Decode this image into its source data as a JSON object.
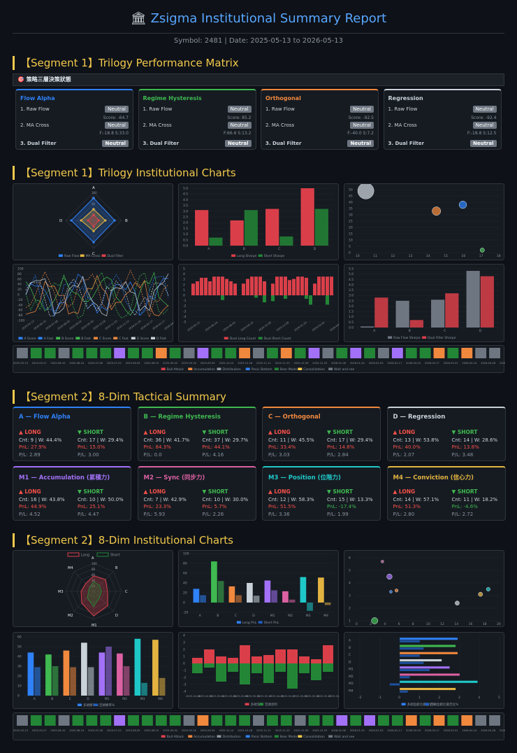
{
  "header": {
    "icon": "bank-icon",
    "title": "Zsigma Institutional Summary Report",
    "subtitle": "Symbol: 2481 | Date: 2025-05-13 to 2026-05-13"
  },
  "sections": {
    "s1": "【Segment 1】Trilogy Performance Matrix",
    "s2": "【Segment 1】Trilogy Institutional Charts",
    "s3": "【Segment 2】8-Dim Tactical Summary",
    "s4": "【Segment 2】8-Dim Institutional Charts"
  },
  "strip_label": "🎯 策略三層決策狀態",
  "trilogy_cards": [
    {
      "title": "Flow Alpha",
      "color": "#2f81f7",
      "r1": "1. Raw Flow",
      "r2": "2. MA Cross",
      "r3": "3. Dual Filter",
      "b1": "Neutral",
      "b2": "Neutral",
      "b3": "Neutral",
      "score": "Score: -64.7",
      "f": "F:-18.8 S:33.0"
    },
    {
      "title": "Regime Hysteresis",
      "color": "#3fb950",
      "r1": "1. Raw Flow",
      "r2": "2. MA Cross",
      "r3": "3. Dual Filter",
      "b1": "Neutral",
      "b2": "Neutral",
      "b3": "Neutral",
      "score": "Score: 85.2",
      "f": "F:66.6 S:13.2"
    },
    {
      "title": "Orthogonal",
      "color": "#f0883e",
      "r1": "1. Raw Flow",
      "r2": "2. MA Cross",
      "r3": "3. Dual Filter",
      "b1": "Neutral",
      "b2": "Neutral",
      "b3": "Neutral",
      "score": "Score: -92.5",
      "f": "F:-40.0 S:7.2"
    },
    {
      "title": "Regression",
      "color": "#c9d1d9",
      "r1": "1. Raw Flow",
      "r2": "2. MA Cross",
      "r3": "3. Dual Filter",
      "b1": "Neutral",
      "b2": "Neutral",
      "b3": "Neutral",
      "score": "Score: -92.4",
      "f": "F:-18.8 S:12.5"
    }
  ],
  "tactical_cards": [
    {
      "title": "A — Flow Alpha",
      "color": "#2f81f7",
      "lh": "▲ LONG",
      "sh": "▼ SHORT",
      "l1": "Cnt: 9 | W: 44.4%",
      "l2": "PnL: 27.9%",
      "l3": "P/L: 2.89",
      "s1": "Cnt: 17 | W: 29.4%",
      "s2": "PnL: 15.0%",
      "s3": "P/L: 3.00",
      "lc": "#f85149",
      "sc": "#f85149"
    },
    {
      "title": "B — Regime Hysteresis",
      "color": "#3fb950",
      "lh": "▲ LONG",
      "sh": "▼ SHORT",
      "l1": "Cnt: 36 | W: 41.7%",
      "l2": "PnL: 84.3%",
      "l3": "P/L: 0.0",
      "s1": "Cnt: 37 | W: 29.7%",
      "s2": "PnL: 44.1%",
      "s3": "P/L: 4.16",
      "lc": "#f85149",
      "sc": "#f85149"
    },
    {
      "title": "C — Orthogonal",
      "color": "#f0883e",
      "lh": "▲ LONG",
      "sh": "▼ SHORT",
      "l1": "Cnt: 11 | W: 45.5%",
      "l2": "PnL: 33.4%",
      "l3": "P/L: 3.03",
      "s1": "Cnt: 17 | W: 29.4%",
      "s2": "PnL: 14.8%",
      "s3": "P/L: 2.84",
      "lc": "#f85149",
      "sc": "#f85149"
    },
    {
      "title": "D — Regression",
      "color": "#c9d1d9",
      "lh": "▲ LONG",
      "sh": "▼ SHORT",
      "l1": "Cnt: 13 | W: 53.8%",
      "l2": "PnL: 40.0%",
      "l3": "P/L: 2.07",
      "s1": "Cnt: 14 | W: 28.6%",
      "s2": "PnL: 13.8%",
      "s3": "P/L: 3.48",
      "lc": "#f85149",
      "sc": "#f85149"
    },
    {
      "title": "M1 — Accumulation (累積力)",
      "color": "#a371f7",
      "lh": "▲ LONG",
      "sh": "▼ SHORT",
      "l1": "Cnt: 16 | W: 43.8%",
      "l2": "PnL: 44.9%",
      "l3": "P/L: 4.52",
      "s1": "Cnt: 10 | W: 50.0%",
      "s2": "PnL: 25.1%",
      "s3": "P/L: 4.47",
      "lc": "#f85149",
      "sc": "#f85149"
    },
    {
      "title": "M2 — Sync (同步力)",
      "color": "#db61a2",
      "lh": "▲ LONG",
      "sh": "▼ SHORT",
      "l1": "Cnt: 7 | W: 42.9%",
      "l2": "PnL: 23.3%",
      "l3": "P/L: 5.93",
      "s1": "Cnt: 10 | W: 30.0%",
      "s2": "PnL: 5.7%",
      "s3": "P/L: 2.26",
      "lc": "#f85149",
      "sc": "#f85149"
    },
    {
      "title": "M3 — Position (位階力)",
      "color": "#1fc8c8",
      "lh": "▲ LONG",
      "sh": "▼ SHORT",
      "l1": "Cnt: 12 | W: 58.3%",
      "l2": "PnL: 51.5%",
      "l3": "P/L: 3.36",
      "s1": "Cnt: 15 | W: 13.3%",
      "s2": "PnL: -17.4%",
      "s3": "P/L: 1.99",
      "lc": "#f85149",
      "sc": "#3fb950"
    },
    {
      "title": "M4 — Conviction (信心力)",
      "color": "#e3b341",
      "lh": "▲ LONG",
      "sh": "▼ SHORT",
      "l1": "Cnt: 14 | W: 57.1%",
      "l2": "PnL: 51.3%",
      "l3": "P/L: 2.80",
      "s1": "Cnt: 11 | W: 18.2%",
      "s2": "PnL: -4.6%",
      "s3": "P/L: 2.72",
      "lc": "#f85149",
      "sc": "#3fb950"
    }
  ],
  "chart_data": [
    {
      "type": "radar",
      "axes": [
        "A",
        "B",
        "C",
        "D"
      ],
      "ticks": [
        "100",
        "80",
        "60",
        "40",
        "20"
      ],
      "series": [
        {
          "name": "Raw Flow",
          "values": [
            80,
            75,
            78,
            80
          ]
        },
        {
          "name": "MA Cross",
          "values": [
            40,
            42,
            38,
            45
          ]
        },
        {
          "name": "Dual Filter",
          "values": [
            20,
            18,
            22,
            20
          ]
        }
      ]
    },
    {
      "type": "bar",
      "categories": [
        "A",
        "B",
        "C",
        "D"
      ],
      "ticks": [
        "5.0",
        "4.5",
        "4.0",
        "3.5",
        "3.0",
        "2.5",
        "2.0",
        "1.5",
        "1.0",
        "0.5",
        "0.0"
      ],
      "series": [
        {
          "name": "Long Sharpe",
          "values": [
            3.1,
            2.2,
            3.2,
            5.0
          ]
        },
        {
          "name": "Short Sharpe",
          "values": [
            0.7,
            3.1,
            0.8,
            3.2
          ]
        }
      ]
    },
    {
      "type": "scatter",
      "xticks": [
        "10",
        "11",
        "12",
        "13",
        "14",
        "15",
        "16",
        "17",
        "18"
      ],
      "yticks": [
        "50",
        "45",
        "40",
        "35",
        "30",
        "25",
        "20",
        "15",
        "10",
        "5",
        "0"
      ],
      "points": [
        {
          "x": 10.5,
          "y": 49,
          "r": 30,
          "c": "#c9d1d9"
        },
        {
          "x": 14.5,
          "y": 33,
          "r": 16,
          "c": "#f0883e"
        },
        {
          "x": 16,
          "y": 38,
          "r": 14,
          "c": "#2f81f7"
        },
        {
          "x": 17.1,
          "y": 2,
          "r": 8,
          "c": "#3fb950"
        }
      ]
    },
    {
      "type": "line",
      "legend": [
        "A Score",
        "A Fast",
        "B Score",
        "B Fast",
        "C Score",
        "C Fast",
        "D Score",
        "D Fast"
      ],
      "yticks": [
        "100",
        "80",
        "60",
        "40",
        "20",
        "0",
        "-20",
        "-40",
        "-60",
        "-80",
        "-100"
      ],
      "xticks": [
        "2025-05-13",
        "2025-06-10",
        "2025-07-08",
        "2025-08-05",
        "2025-09-02",
        "2025-09-30",
        "2025-10-28",
        "2025-11-25",
        "2025-12-23",
        "2026-01-20",
        "2026-02-17",
        "2026-03-17",
        "2026-04-14"
      ]
    },
    {
      "type": "bar",
      "legend": [
        "Dual Long Count",
        "Dual Short Count"
      ],
      "yticks": [
        "5",
        "4",
        "3",
        "2",
        "1",
        "0",
        "-1",
        "-2",
        "-3",
        "-4",
        "-5"
      ],
      "xticks": [
        "2025-05-13",
        "2025-06-24",
        "2025-08-05",
        "2025-09-16",
        "2025-10-28",
        "2025-12-09",
        "2026-01-20",
        "2026-03-03",
        "2026-04-14"
      ],
      "long": [
        1,
        1.2,
        1.5,
        1.5,
        1.2,
        1.6,
        1.6,
        1.6,
        1.4,
        1.2,
        1,
        0,
        1,
        1.4,
        1.6,
        1.6,
        1.6,
        1.2,
        0,
        1,
        1.6,
        1.6,
        1.6,
        1.3,
        1.4,
        1.6,
        1.6,
        1.5,
        0,
        1,
        1.6,
        1.6,
        1.6,
        1.6
      ],
      "short": [
        0,
        0,
        0,
        0,
        0,
        0,
        0,
        -0.4,
        0,
        0,
        0,
        0,
        0,
        0,
        0,
        -0.2,
        0,
        -0.6,
        0,
        -0.5,
        0,
        0,
        -0.3,
        0,
        0,
        0,
        0,
        -0.3,
        -0.8,
        0,
        0,
        0,
        -0.8,
        0
      ]
    },
    {
      "type": "bar",
      "categories": [
        "A",
        "B",
        "C",
        "D"
      ],
      "yticks": [
        "5.5",
        "5.0",
        "4.5",
        "4.0",
        "3.5",
        "3.0",
        "2.5",
        "2.0",
        "1.5",
        "1.0",
        "0.5",
        "0.0"
      ],
      "series": [
        {
          "name": "Raw Flow Sharpe",
          "values": [
            0.1,
            2.5,
            2.6,
            5.3
          ]
        },
        {
          "name": "Dual Filter Sharpe",
          "values": [
            2.8,
            0.7,
            3.2,
            4.8
          ]
        }
      ]
    },
    {
      "type": "heatstrip",
      "legend": [
        "Bull Attack",
        "Accumulation",
        "Distribution",
        "Panic Bottom",
        "Bear Mode",
        "Consolidation",
        "Wait and see"
      ],
      "cells": [
        "#6e7681",
        "#238636",
        "#238636",
        "#6e7681",
        "#238636",
        "#238636",
        "#238636",
        "#a371f7",
        "#238636",
        "#238636",
        "#f0883e",
        "#238636",
        "#6e7681",
        "#a371f7",
        "#238636",
        "#238636",
        "#f0883e",
        "#6e7681",
        "#238636",
        "#f0883e",
        "#238636",
        "#a371f7",
        "#6e7681",
        "#238636",
        "#a371f7",
        "#238636",
        "#6e7681",
        "#a371f7",
        "#238636",
        "#238636",
        "#f0883e",
        "#238636",
        "#f0883e",
        "#6e7681",
        "#6e7681"
      ],
      "xlabels": [
        "2025-05-13",
        "2025-05-27",
        "2025-06-10",
        "2025-06-24",
        "2025-07-08",
        "2025-07-22",
        "2025-08-05",
        "2025-08-19",
        "2025-09-02",
        "2025-09-16",
        "2025-09-30",
        "2025-10-14",
        "2025-10-28",
        "2025-11-11",
        "2025-11-25",
        "2025-12-09",
        "2025-12-23",
        "2026-01-06",
        "2026-01-20",
        "2026-02-03",
        "2026-02-17",
        "2026-03-03",
        "2026-03-17",
        "2026-03-31",
        "2026-04-14",
        "2026-04-28",
        "2026-05-12"
      ]
    },
    {
      "type": "radar",
      "axes": [
        "A",
        "B",
        "C",
        "D",
        "M1",
        "M2",
        "M3",
        "M4"
      ],
      "ticks": [
        "100",
        "80",
        "60",
        "40",
        "20"
      ],
      "legend": [
        "Long",
        "Short"
      ],
      "series": [
        {
          "name": "Long",
          "values": [
            55,
            60,
            50,
            72,
            88,
            60,
            45,
            40
          ]
        },
        {
          "name": "Short",
          "values": [
            35,
            30,
            28,
            30,
            55,
            32,
            18,
            20
          ]
        }
      ]
    },
    {
      "type": "bar",
      "categories": [
        "A",
        "B",
        "C",
        "D",
        "M1",
        "M2",
        "M3",
        "M4"
      ],
      "yticks": [
        "100",
        "80",
        "60",
        "40",
        "20",
        "0",
        "-20"
      ],
      "series": [
        {
          "name": "Long PnL",
          "values": [
            28,
            84,
            33,
            40,
            45,
            23,
            52,
            51
          ]
        },
        {
          "name": "Short PnL",
          "values": [
            15,
            44,
            15,
            14,
            25,
            6,
            -17,
            -5
          ]
        }
      ]
    },
    {
      "type": "scatter",
      "xticks": [
        "0",
        "2",
        "4",
        "6",
        "8",
        "10",
        "12",
        "14",
        "16",
        "18",
        "20"
      ],
      "yticks": [
        "6",
        "5",
        "4",
        "3",
        "2",
        "1"
      ],
      "points": [
        {
          "x": 2.5,
          "y": 1.0,
          "r": 12,
          "c": "#3fb950"
        },
        {
          "x": 3.6,
          "y": 5.7,
          "r": 5,
          "c": "#db61a2"
        },
        {
          "x": 4.6,
          "y": 4.5,
          "r": 10,
          "c": "#a371f7"
        },
        {
          "x": 5.6,
          "y": 3.4,
          "r": 6,
          "c": "#f0883e"
        },
        {
          "x": 4.8,
          "y": 3.3,
          "r": 5,
          "c": "#2f81f7"
        },
        {
          "x": 14.2,
          "y": 2.4,
          "r": 8,
          "c": "#c9d1d9"
        },
        {
          "x": 17.5,
          "y": 3.1,
          "r": 8,
          "c": "#e3b341"
        },
        {
          "x": 18.6,
          "y": 3.5,
          "r": 7,
          "c": "#1fc8c8"
        }
      ]
    },
    {
      "type": "bar",
      "categories": [
        "A",
        "B",
        "C",
        "D",
        "M1",
        "M2",
        "M3",
        "M4"
      ],
      "legend": [
        "多頭勝率%",
        "空頭勝率%"
      ],
      "yticks": [
        "60",
        "50",
        "40",
        "30",
        "20",
        "10",
        "0"
      ],
      "series": [
        {
          "name": "多頭勝率%",
          "values": [
            44,
            42,
            46,
            54,
            44,
            43,
            58,
            57
          ]
        },
        {
          "name": "空頭勝率%",
          "values": [
            29,
            30,
            29,
            29,
            50,
            30,
            13,
            18
          ]
        }
      ]
    },
    {
      "type": "bar",
      "legend": [
        "多頭滾利",
        "空頭滾利"
      ],
      "yticks": [
        "4",
        "3",
        "2",
        "1",
        "0",
        "-1",
        "-2",
        "-3",
        "-4"
      ],
      "xticks": [
        "2025-04-28",
        "2025-04-30",
        "2025-05-04",
        "2025-05-06",
        "2025-05-08",
        "2025-05-10",
        "2025-05-12",
        "2025-04-25",
        "2025-04-27",
        "2025-05-05",
        "2025-05-10",
        "2025-05-12",
        "2025-05-13"
      ],
      "up": [
        0.8,
        2,
        1,
        0.8,
        2.6,
        1,
        1.2,
        2,
        2,
        1,
        0.6,
        2.6
      ],
      "down": [
        -1.4,
        -0.6,
        -2.6,
        -1.2,
        -3,
        -1.4,
        -2.8,
        -1.2,
        -3.6,
        -1.4,
        -2.4,
        -1.2
      ]
    },
    {
      "type": "hbar",
      "categories": [
        "A",
        "B",
        "C",
        "D",
        "M1",
        "M2",
        "M3",
        "M4"
      ],
      "legend": [
        "多頭盈虧比最佳化%",
        "空頭盈虧比最佳化%"
      ],
      "xticks": [
        "-2",
        "-1",
        "0",
        "1",
        "2",
        "3",
        "4",
        "5"
      ],
      "series": [
        {
          "name": "多頭盈虧比最佳化%",
          "values": [
            2.9,
            2.8,
            2.9,
            2.1,
            2.5,
            3.0,
            3.9,
            2.8
          ],
          "colors": [
            "#2f81f7",
            "#3fb950",
            "#f0883e",
            "#c9d1d9",
            "#a371f7",
            "#db61a2",
            "#1fc8c8",
            "#e3b341"
          ]
        },
        {
          "name": "空頭盈虧比最佳化%",
          "values": [
            1.0,
            1.2,
            1.0,
            1.2,
            1.5,
            0.5,
            -0.5,
            0.4
          ],
          "colors": [
            "#1f5fbf",
            "#1f5fbf",
            "#1f5fbf",
            "#1f5fbf",
            "#1f5fbf",
            "#1f5fbf",
            "#1f5fbf",
            "#1f5fbf"
          ]
        }
      ]
    },
    {
      "type": "heatstrip",
      "legend": [
        "Bull Attack",
        "Accumulation",
        "Distribution",
        "Panic Bottom",
        "Bear Mode",
        "Consolidation",
        "Wait and see"
      ],
      "cells": [
        "#6e7681",
        "#238636",
        "#238636",
        "#6e7681",
        "#238636",
        "#238636",
        "#238636",
        "#a371f7",
        "#238636",
        "#238636",
        "#238636",
        "#238636",
        "#6e7681",
        "#f0883e",
        "#238636",
        "#238636",
        "#238636",
        "#6e7681",
        "#238636",
        "#238636",
        "#6e7681",
        "#238636",
        "#238636",
        "#a371f7",
        "#238636",
        "#a371f7",
        "#238636",
        "#238636",
        "#f0883e",
        "#238636",
        "#f0883e",
        "#238636",
        "#f0883e",
        "#6e7681",
        "#6e7681"
      ],
      "xlabels": [
        "2025-05-13",
        "2025-05-27",
        "2025-06-10",
        "2025-06-24",
        "2025-07-08",
        "2025-07-22",
        "2025-08-05",
        "2025-08-19",
        "2025-09-02",
        "2025-09-16",
        "2025-09-30",
        "2025-10-14",
        "2025-10-28",
        "2025-11-11",
        "2025-11-25",
        "2025-12-09",
        "2025-12-23",
        "2026-01-06",
        "2026-01-20",
        "2026-02-03",
        "2026-02-17",
        "2026-03-03",
        "2026-03-17",
        "2026-03-31",
        "2026-04-14",
        "2026-04-28",
        "2026-05-12"
      ]
    }
  ]
}
